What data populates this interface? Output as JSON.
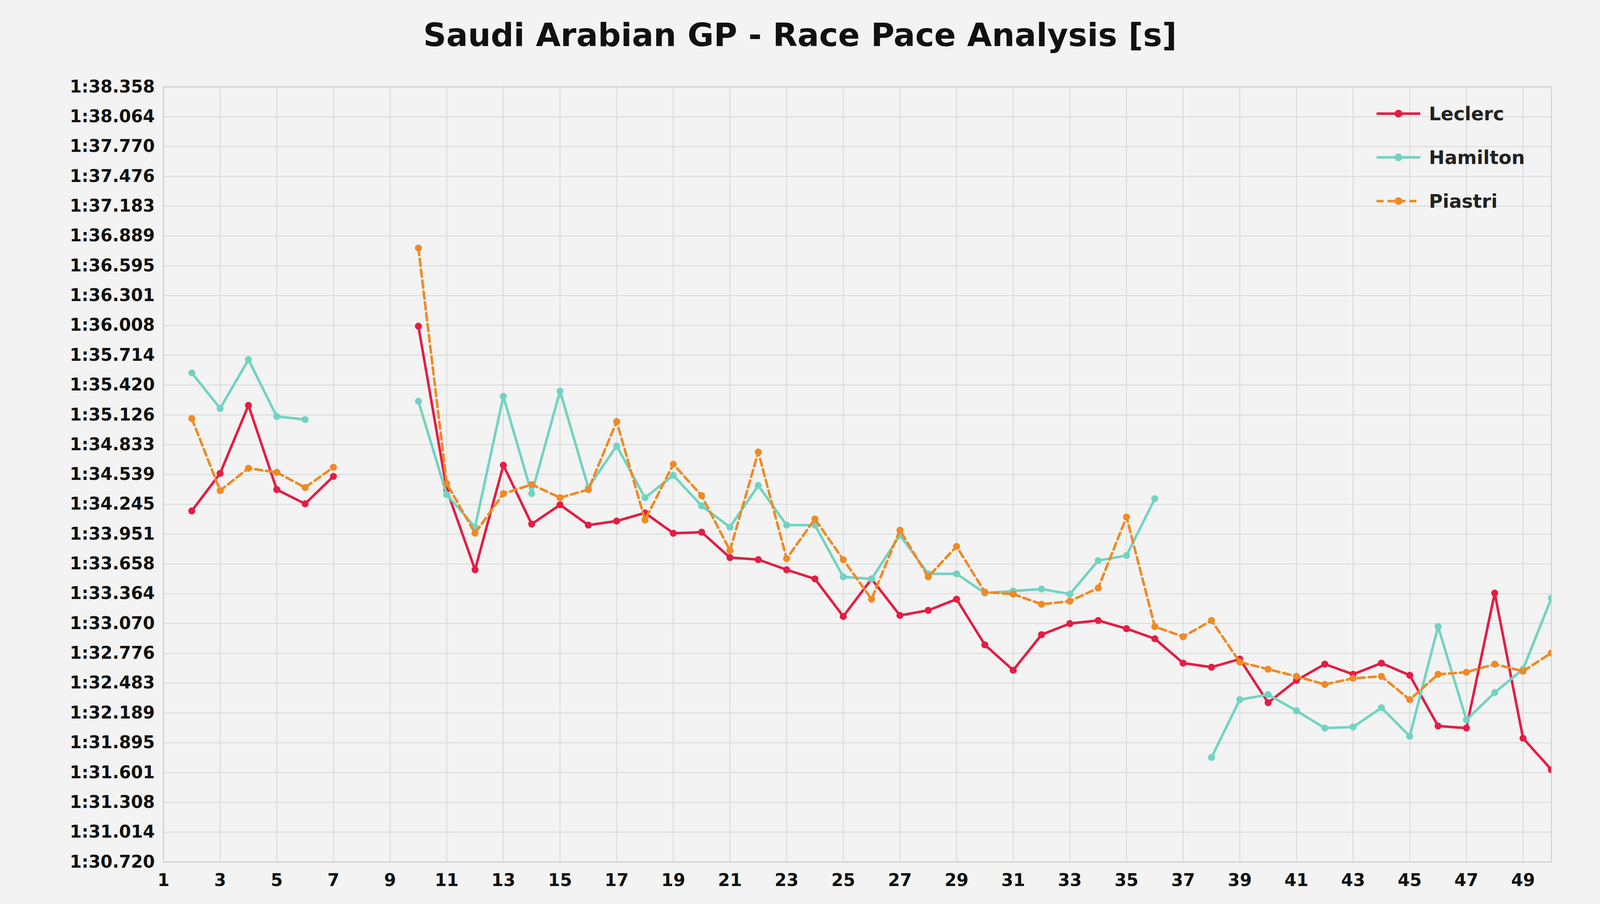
{
  "chart_data": {
    "type": "line",
    "title": "Saudi Arabian GP - Race Pace Analysis [s]",
    "x": [
      1,
      2,
      3,
      4,
      5,
      6,
      7,
      8,
      9,
      10,
      11,
      12,
      13,
      14,
      15,
      16,
      17,
      18,
      19,
      20,
      21,
      22,
      23,
      24,
      25,
      26,
      27,
      28,
      29,
      30,
      31,
      32,
      33,
      34,
      35,
      36,
      37,
      38,
      39,
      40,
      41,
      42,
      43,
      44,
      45,
      46,
      47,
      48,
      49,
      50
    ],
    "xlim": [
      1,
      50
    ],
    "xticks": [
      1,
      3,
      5,
      7,
      9,
      11,
      13,
      15,
      17,
      19,
      21,
      23,
      25,
      27,
      29,
      31,
      33,
      35,
      37,
      39,
      41,
      43,
      45,
      47,
      49
    ],
    "ylim": [
      90.72,
      98.358
    ],
    "yticks": [
      {
        "value": 90.72,
        "label": "1:30.720"
      },
      {
        "value": 91.014,
        "label": "1:31.014"
      },
      {
        "value": 91.308,
        "label": "1:31.308"
      },
      {
        "value": 91.601,
        "label": "1:31.601"
      },
      {
        "value": 91.895,
        "label": "1:31.895"
      },
      {
        "value": 92.189,
        "label": "1:32.189"
      },
      {
        "value": 92.483,
        "label": "1:32.483"
      },
      {
        "value": 92.776,
        "label": "1:32.776"
      },
      {
        "value": 93.07,
        "label": "1:33.070"
      },
      {
        "value": 93.364,
        "label": "1:33.364"
      },
      {
        "value": 93.658,
        "label": "1:33.658"
      },
      {
        "value": 93.951,
        "label": "1:33.951"
      },
      {
        "value": 94.245,
        "label": "1:34.245"
      },
      {
        "value": 94.539,
        "label": "1:34.539"
      },
      {
        "value": 94.833,
        "label": "1:34.833"
      },
      {
        "value": 95.126,
        "label": "1:35.126"
      },
      {
        "value": 95.42,
        "label": "1:35.420"
      },
      {
        "value": 95.714,
        "label": "1:35.714"
      },
      {
        "value": 96.008,
        "label": "1:36.008"
      },
      {
        "value": 96.301,
        "label": "1:36.301"
      },
      {
        "value": 96.595,
        "label": "1:36.595"
      },
      {
        "value": 96.889,
        "label": "1:36.889"
      },
      {
        "value": 97.183,
        "label": "1:37.183"
      },
      {
        "value": 97.476,
        "label": "1:37.476"
      },
      {
        "value": 97.77,
        "label": "1:37.770"
      },
      {
        "value": 98.064,
        "label": "1:38.064"
      },
      {
        "value": 98.358,
        "label": "1:38.358"
      }
    ],
    "grid": true,
    "legend": "top-right",
    "series": [
      {
        "name": "Leclerc",
        "color": "#e41d45",
        "marker": "circle",
        "line_style": "solid",
        "values": [
          null,
          94.18,
          94.55,
          95.22,
          94.39,
          94.25,
          94.52,
          null,
          null,
          96.0,
          94.39,
          93.6,
          94.63,
          94.05,
          94.24,
          94.04,
          94.08,
          94.16,
          93.96,
          93.97,
          93.72,
          93.7,
          93.6,
          93.51,
          93.14,
          93.51,
          93.15,
          93.2,
          93.31,
          92.86,
          92.61,
          92.96,
          93.07,
          93.1,
          93.02,
          92.92,
          92.68,
          92.64,
          92.72,
          92.29,
          92.51,
          92.67,
          92.57,
          92.68,
          92.56,
          92.06,
          92.04,
          93.37,
          91.94,
          91.63
        ]
      },
      {
        "name": "Hamilton",
        "color": "#72d3c2",
        "marker": "circle",
        "line_style": "solid",
        "values": [
          null,
          95.54,
          95.19,
          95.67,
          95.11,
          95.08,
          null,
          null,
          null,
          95.26,
          94.34,
          94.02,
          95.31,
          94.35,
          95.36,
          94.41,
          94.82,
          94.31,
          94.53,
          94.23,
          94.02,
          94.43,
          94.04,
          94.04,
          93.53,
          93.51,
          93.94,
          93.56,
          93.56,
          93.37,
          93.39,
          93.41,
          93.36,
          93.69,
          93.74,
          94.3,
          null,
          91.75,
          92.32,
          92.37,
          92.21,
          92.04,
          92.05,
          92.24,
          91.96,
          93.04,
          92.12,
          92.39,
          92.62,
          93.32
        ]
      },
      {
        "name": "Piastri",
        "color": "#f08a24",
        "marker": "circle",
        "line_style": "dashed",
        "values": [
          null,
          95.09,
          94.38,
          94.6,
          94.56,
          94.41,
          94.61,
          null,
          null,
          96.77,
          94.45,
          93.96,
          94.35,
          94.44,
          94.31,
          94.39,
          95.06,
          94.09,
          94.64,
          94.33,
          93.79,
          94.76,
          93.71,
          94.1,
          93.7,
          93.31,
          93.99,
          93.53,
          93.83,
          93.38,
          93.36,
          93.26,
          93.29,
          93.42,
          94.12,
          93.04,
          92.94,
          93.1,
          92.69,
          92.62,
          92.55,
          92.47,
          92.53,
          92.55,
          92.32,
          92.57,
          92.59,
          92.67,
          92.6,
          92.78
        ]
      }
    ]
  }
}
